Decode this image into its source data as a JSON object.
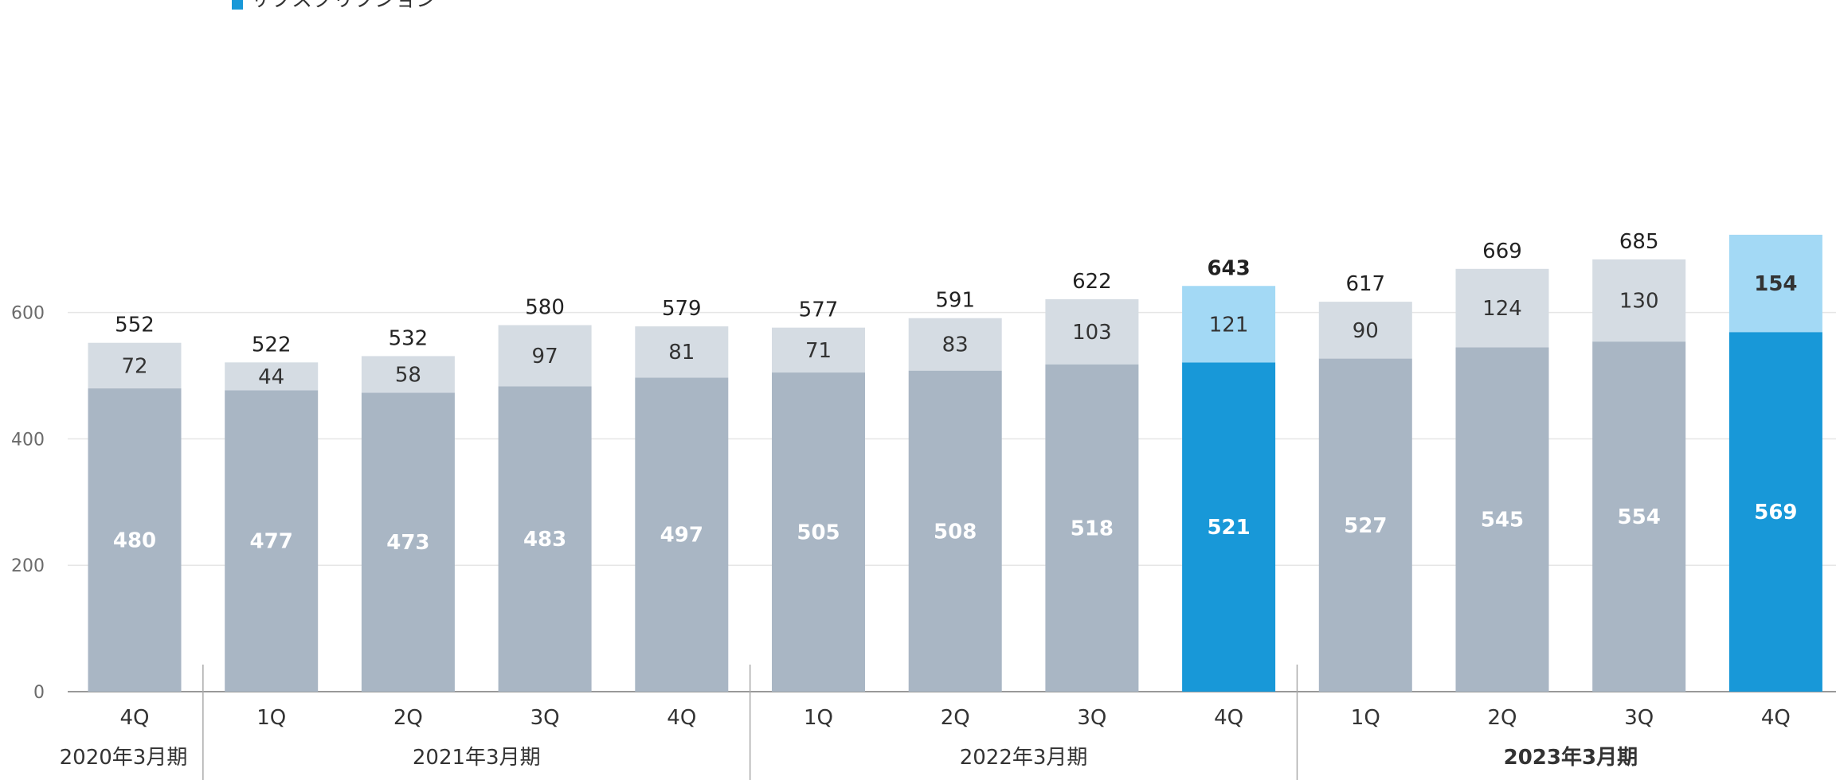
{
  "chart_data": {
    "type": "bar",
    "stacked": true,
    "legend": {
      "entries": [
        "サブスクリプション"
      ],
      "placement": "top-left"
    },
    "ylim": [
      0,
      700
    ],
    "yticks": [
      0,
      200,
      400,
      600
    ],
    "grid": true,
    "categories": [
      "4Q",
      "1Q",
      "2Q",
      "3Q",
      "4Q",
      "1Q",
      "2Q",
      "3Q",
      "4Q",
      "1Q",
      "2Q",
      "3Q",
      "4Q"
    ],
    "series": [
      {
        "name": "サブスクリプション",
        "values": [
          480,
          477,
          473,
          483,
          497,
          505,
          508,
          518,
          521,
          527,
          545,
          554,
          569
        ]
      },
      {
        "values": [
          72,
          44,
          58,
          97,
          81,
          71,
          83,
          103,
          121,
          90,
          124,
          130,
          154
        ]
      }
    ],
    "totals": [
      552,
      522,
      532,
      580,
      579,
      577,
      591,
      622,
      643,
      617,
      669,
      685,
      null
    ],
    "highlight_index": [
      8,
      12
    ],
    "groups": [
      {
        "label": "2020年3月期",
        "start": 0,
        "end": 0,
        "bold": false
      },
      {
        "label": "2021年3月期",
        "start": 1,
        "end": 4,
        "bold": false
      },
      {
        "label": "2022年3月期",
        "start": 5,
        "end": 8,
        "bold": false
      },
      {
        "label": "2023年3月期",
        "start": 9,
        "end": 12,
        "bold": true
      }
    ],
    "colors": {
      "bottom": "#a9b6c4",
      "top": "#d5dce3",
      "highlight_bottom": "#1898d8",
      "highlight_top": "#a3d9f5",
      "grid": "#e6e6e6",
      "axis": "#999999"
    }
  }
}
